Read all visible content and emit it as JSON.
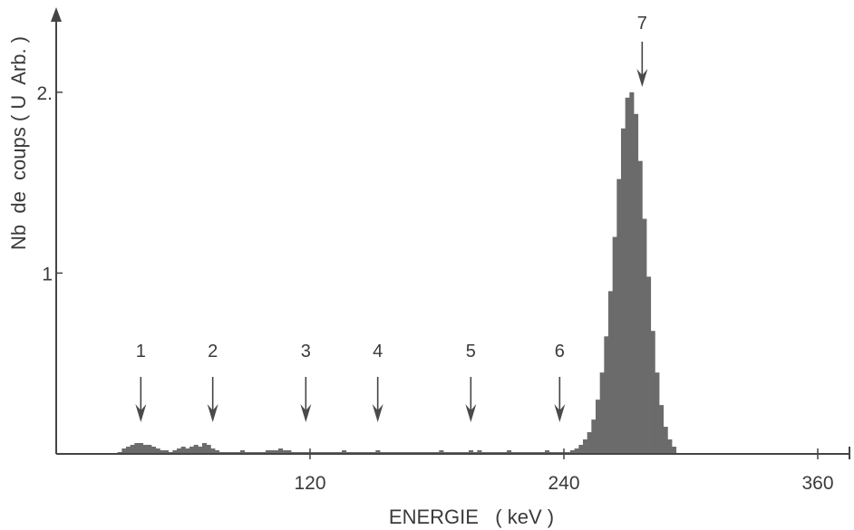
{
  "chart_data": {
    "type": "bar",
    "xlabel": "ENERGIE   ( keV )",
    "ylabel": "Nb  de  coups ( U  Arb. )",
    "xlim": [
      0,
      375
    ],
    "ylim": [
      0,
      2.45
    ],
    "x_ticks": [
      120,
      240,
      360
    ],
    "y_ticks": [
      1,
      2
    ],
    "y_tick_labels": [
      "1",
      "2."
    ],
    "bin_width": 2,
    "x": [
      30,
      32,
      34,
      36,
      38,
      40,
      42,
      44,
      46,
      48,
      50,
      52,
      54,
      56,
      58,
      60,
      62,
      64,
      66,
      68,
      70,
      72,
      74,
      76,
      78,
      80,
      82,
      84,
      86,
      88,
      90,
      92,
      94,
      96,
      98,
      100,
      102,
      104,
      106,
      108,
      110,
      112,
      114,
      116,
      118,
      120,
      122,
      124,
      126,
      128,
      130,
      132,
      134,
      136,
      138,
      140,
      142,
      144,
      146,
      148,
      150,
      152,
      154,
      156,
      158,
      160,
      162,
      164,
      166,
      168,
      170,
      172,
      174,
      176,
      178,
      180,
      182,
      184,
      186,
      188,
      190,
      192,
      194,
      196,
      198,
      200,
      202,
      204,
      206,
      208,
      210,
      212,
      214,
      216,
      218,
      220,
      222,
      224,
      226,
      228,
      230,
      232,
      234,
      236,
      238,
      240,
      242,
      244,
      246,
      248,
      250,
      252,
      254,
      256,
      258,
      260,
      262,
      264,
      266,
      268,
      270,
      272,
      274,
      276,
      278,
      280,
      282,
      284,
      286,
      288,
      290,
      292
    ],
    "values": [
      0.01,
      0.03,
      0.04,
      0.05,
      0.06,
      0.06,
      0.05,
      0.05,
      0.04,
      0.03,
      0.02,
      0.02,
      0.01,
      0.02,
      0.03,
      0.04,
      0.03,
      0.04,
      0.05,
      0.04,
      0.06,
      0.05,
      0.03,
      0.02,
      0.01,
      0.01,
      0.01,
      0.01,
      0.01,
      0.02,
      0.01,
      0.01,
      0.01,
      0.01,
      0.01,
      0.02,
      0.02,
      0.02,
      0.03,
      0.02,
      0.02,
      0.01,
      0.01,
      0.01,
      0.01,
      0.01,
      0.01,
      0.01,
      0.01,
      0.01,
      0.01,
      0.01,
      0.01,
      0.02,
      0.01,
      0.01,
      0.01,
      0.01,
      0.01,
      0.01,
      0.01,
      0.02,
      0.01,
      0.01,
      0.01,
      0.01,
      0.01,
      0.01,
      0.01,
      0.01,
      0.01,
      0.01,
      0.01,
      0.01,
      0.01,
      0.01,
      0.02,
      0.01,
      0.01,
      0.01,
      0.01,
      0.01,
      0.01,
      0.02,
      0.01,
      0.02,
      0.01,
      0.01,
      0.01,
      0.01,
      0.01,
      0.01,
      0.02,
      0.01,
      0.01,
      0.01,
      0.01,
      0.01,
      0.01,
      0.01,
      0.01,
      0.02,
      0.01,
      0.01,
      0.01,
      0.01,
      0.01,
      0.02,
      0.03,
      0.05,
      0.08,
      0.12,
      0.19,
      0.3,
      0.45,
      0.65,
      0.9,
      1.2,
      1.52,
      1.8,
      1.97,
      2.0,
      1.88,
      1.62,
      1.3,
      0.98,
      0.68,
      0.45,
      0.27,
      0.15,
      0.08,
      0.04
    ],
    "annotations": [
      {
        "label": "1",
        "x": 40
      },
      {
        "label": "2",
        "x": 74
      },
      {
        "label": "3",
        "x": 118
      },
      {
        "label": "4",
        "x": 152
      },
      {
        "label": "5",
        "x": 196
      },
      {
        "label": "6",
        "x": 238
      },
      {
        "label": "7",
        "x": 277
      }
    ],
    "grid": false,
    "colors": {
      "bars": "#6b6b6b",
      "axes": "#444444",
      "text": "#3a3a3a"
    }
  }
}
